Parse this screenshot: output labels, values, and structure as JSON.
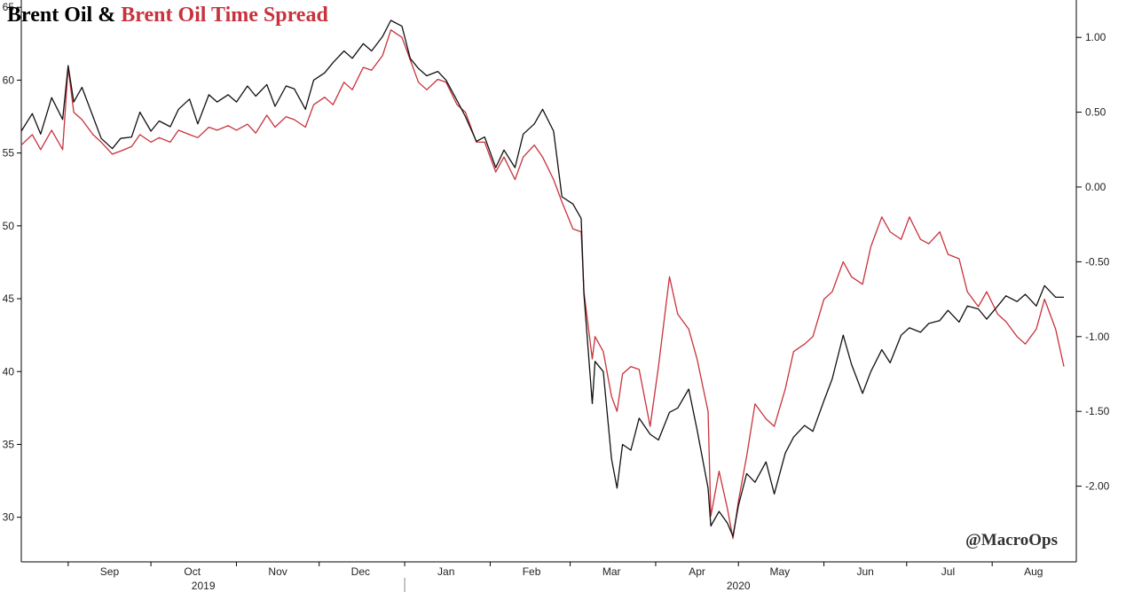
{
  "chart_data": {
    "type": "line",
    "title": "Brent Oil & ",
    "title_highlight": "Brent Oil Time Spread",
    "watermark": "@MacroOps",
    "colors": {
      "brent": "#111111",
      "spread": "#c8323c"
    },
    "x_months": [
      {
        "label": "Sep",
        "date": "2019-09-01"
      },
      {
        "label": "Oct",
        "date": "2019-10-01"
      },
      {
        "label": "Nov",
        "date": "2019-11-01"
      },
      {
        "label": "Dec",
        "date": "2019-12-01"
      },
      {
        "label": "Jan",
        "date": "2020-01-01"
      },
      {
        "label": "Feb",
        "date": "2020-02-01"
      },
      {
        "label": "Mar",
        "date": "2020-03-01"
      },
      {
        "label": "Apr",
        "date": "2020-04-01"
      },
      {
        "label": "May",
        "date": "2020-05-01"
      },
      {
        "label": "Jun",
        "date": "2020-06-01"
      },
      {
        "label": "Jul",
        "date": "2020-07-01"
      },
      {
        "label": "Aug",
        "date": "2020-08-01"
      }
    ],
    "x_years": [
      {
        "label": "2019",
        "date": "2019-10-20"
      },
      {
        "label": "2020",
        "date": "2020-05-01"
      }
    ],
    "x_range": [
      "2019-08-15",
      "2020-08-27"
    ],
    "year_divider": "2020-01-01",
    "left_axis": {
      "ylim": [
        27,
        65.5
      ],
      "ticks": [
        30,
        35,
        40,
        45,
        50,
        55,
        60,
        65
      ],
      "tick_labels": [
        "30",
        "35",
        "40",
        "45",
        "50",
        "55",
        "60",
        "65"
      ]
    },
    "right_axis": {
      "ylim": [
        -2.5,
        1.25
      ],
      "ticks": [
        -2.0,
        -1.5,
        -1.0,
        -0.5,
        0.0,
        0.5,
        1.0
      ],
      "tick_labels": [
        "-2.00",
        "-1.50",
        "-1.00",
        "-0.50",
        "0.00",
        "0.50",
        "1.00"
      ]
    },
    "series": [
      {
        "name": "Brent Oil",
        "axis": "left",
        "points": [
          [
            "2019-08-15",
            56.5
          ],
          [
            "2019-08-19",
            57.7
          ],
          [
            "2019-08-22",
            56.3
          ],
          [
            "2019-08-26",
            58.8
          ],
          [
            "2019-08-30",
            57.3
          ],
          [
            "2019-09-01",
            61.0
          ],
          [
            "2019-09-03",
            58.5
          ],
          [
            "2019-09-06",
            59.5
          ],
          [
            "2019-09-10",
            57.5
          ],
          [
            "2019-09-13",
            56.0
          ],
          [
            "2019-09-17",
            55.3
          ],
          [
            "2019-09-20",
            56.0
          ],
          [
            "2019-09-24",
            56.1
          ],
          [
            "2019-09-27",
            57.8
          ],
          [
            "2019-10-01",
            56.5
          ],
          [
            "2019-10-04",
            57.2
          ],
          [
            "2019-10-08",
            56.8
          ],
          [
            "2019-10-11",
            58.0
          ],
          [
            "2019-10-15",
            58.7
          ],
          [
            "2019-10-18",
            57.0
          ],
          [
            "2019-10-22",
            59.0
          ],
          [
            "2019-10-25",
            58.5
          ],
          [
            "2019-10-29",
            59.0
          ],
          [
            "2019-11-01",
            58.5
          ],
          [
            "2019-11-05",
            59.6
          ],
          [
            "2019-11-08",
            58.9
          ],
          [
            "2019-11-12",
            59.7
          ],
          [
            "2019-11-15",
            58.2
          ],
          [
            "2019-11-19",
            59.6
          ],
          [
            "2019-11-22",
            59.4
          ],
          [
            "2019-11-26",
            58.0
          ],
          [
            "2019-11-29",
            60.0
          ],
          [
            "2019-12-03",
            60.5
          ],
          [
            "2019-12-06",
            61.2
          ],
          [
            "2019-12-10",
            62.0
          ],
          [
            "2019-12-13",
            61.5
          ],
          [
            "2019-12-17",
            62.5
          ],
          [
            "2019-12-20",
            62.0
          ],
          [
            "2019-12-24",
            63.0
          ],
          [
            "2019-12-27",
            64.1
          ],
          [
            "2019-12-31",
            63.7
          ],
          [
            "2020-01-03",
            61.5
          ],
          [
            "2020-01-06",
            60.8
          ],
          [
            "2020-01-09",
            60.3
          ],
          [
            "2020-01-13",
            60.6
          ],
          [
            "2020-01-16",
            60.0
          ],
          [
            "2020-01-20",
            58.6
          ],
          [
            "2020-01-23",
            57.5
          ],
          [
            "2020-01-27",
            55.8
          ],
          [
            "2020-01-30",
            56.1
          ],
          [
            "2020-02-03",
            54.0
          ],
          [
            "2020-02-06",
            55.2
          ],
          [
            "2020-02-10",
            54.0
          ],
          [
            "2020-02-13",
            56.3
          ],
          [
            "2020-02-17",
            57.0
          ],
          [
            "2020-02-20",
            58.0
          ],
          [
            "2020-02-24",
            56.5
          ],
          [
            "2020-02-27",
            52.0
          ],
          [
            "2020-03-02",
            51.5
          ],
          [
            "2020-03-05",
            50.5
          ],
          [
            "2020-03-06",
            45.3
          ],
          [
            "2020-03-09",
            37.8
          ],
          [
            "2020-03-10",
            40.7
          ],
          [
            "2020-03-13",
            40.0
          ],
          [
            "2020-03-16",
            34.0
          ],
          [
            "2020-03-18",
            32.0
          ],
          [
            "2020-03-20",
            35.0
          ],
          [
            "2020-03-23",
            34.6
          ],
          [
            "2020-03-26",
            36.8
          ],
          [
            "2020-03-30",
            35.7
          ],
          [
            "2020-04-02",
            35.3
          ],
          [
            "2020-04-06",
            37.2
          ],
          [
            "2020-04-09",
            37.5
          ],
          [
            "2020-04-13",
            38.8
          ],
          [
            "2020-04-16",
            36.0
          ],
          [
            "2020-04-20",
            32.0
          ],
          [
            "2020-04-21",
            29.4
          ],
          [
            "2020-04-24",
            30.4
          ],
          [
            "2020-04-27",
            29.6
          ],
          [
            "2020-04-29",
            28.7
          ],
          [
            "2020-05-01",
            30.8
          ],
          [
            "2020-05-04",
            33.0
          ],
          [
            "2020-05-07",
            32.4
          ],
          [
            "2020-05-11",
            33.8
          ],
          [
            "2020-05-14",
            31.6
          ],
          [
            "2020-05-18",
            34.4
          ],
          [
            "2020-05-21",
            35.5
          ],
          [
            "2020-05-25",
            36.3
          ],
          [
            "2020-05-28",
            35.9
          ],
          [
            "2020-06-01",
            38.0
          ],
          [
            "2020-06-04",
            39.5
          ],
          [
            "2020-06-08",
            42.5
          ],
          [
            "2020-06-11",
            40.5
          ],
          [
            "2020-06-15",
            38.5
          ],
          [
            "2020-06-18",
            40.0
          ],
          [
            "2020-06-22",
            41.5
          ],
          [
            "2020-06-25",
            40.6
          ],
          [
            "2020-06-29",
            42.5
          ],
          [
            "2020-07-02",
            43.0
          ],
          [
            "2020-07-06",
            42.7
          ],
          [
            "2020-07-09",
            43.3
          ],
          [
            "2020-07-13",
            43.5
          ],
          [
            "2020-07-16",
            44.2
          ],
          [
            "2020-07-20",
            43.4
          ],
          [
            "2020-07-23",
            44.5
          ],
          [
            "2020-07-27",
            44.3
          ],
          [
            "2020-07-30",
            43.6
          ],
          [
            "2020-08-03",
            44.5
          ],
          [
            "2020-08-06",
            45.2
          ],
          [
            "2020-08-10",
            44.8
          ],
          [
            "2020-08-13",
            45.3
          ],
          [
            "2020-08-17",
            44.5
          ],
          [
            "2020-08-20",
            45.9
          ],
          [
            "2020-08-24",
            45.1
          ],
          [
            "2020-08-27",
            45.1
          ]
        ]
      },
      {
        "name": "Brent Oil Time Spread",
        "axis": "right",
        "points": [
          [
            "2019-08-15",
            0.28
          ],
          [
            "2019-08-19",
            0.35
          ],
          [
            "2019-08-22",
            0.25
          ],
          [
            "2019-08-26",
            0.38
          ],
          [
            "2019-08-30",
            0.25
          ],
          [
            "2019-09-01",
            0.8
          ],
          [
            "2019-09-03",
            0.5
          ],
          [
            "2019-09-06",
            0.45
          ],
          [
            "2019-09-10",
            0.35
          ],
          [
            "2019-09-13",
            0.3
          ],
          [
            "2019-09-17",
            0.22
          ],
          [
            "2019-09-20",
            0.24
          ],
          [
            "2019-09-24",
            0.27
          ],
          [
            "2019-09-27",
            0.35
          ],
          [
            "2019-10-01",
            0.3
          ],
          [
            "2019-10-04",
            0.33
          ],
          [
            "2019-10-08",
            0.3
          ],
          [
            "2019-10-11",
            0.38
          ],
          [
            "2019-10-15",
            0.35
          ],
          [
            "2019-10-18",
            0.33
          ],
          [
            "2019-10-22",
            0.4
          ],
          [
            "2019-10-25",
            0.38
          ],
          [
            "2019-10-29",
            0.41
          ],
          [
            "2019-11-01",
            0.38
          ],
          [
            "2019-11-05",
            0.42
          ],
          [
            "2019-11-08",
            0.36
          ],
          [
            "2019-11-12",
            0.48
          ],
          [
            "2019-11-15",
            0.4
          ],
          [
            "2019-11-19",
            0.47
          ],
          [
            "2019-11-22",
            0.45
          ],
          [
            "2019-11-26",
            0.4
          ],
          [
            "2019-11-29",
            0.55
          ],
          [
            "2019-12-03",
            0.6
          ],
          [
            "2019-12-06",
            0.55
          ],
          [
            "2019-12-10",
            0.7
          ],
          [
            "2019-12-13",
            0.65
          ],
          [
            "2019-12-17",
            0.8
          ],
          [
            "2019-12-20",
            0.78
          ],
          [
            "2019-12-24",
            0.88
          ],
          [
            "2019-12-27",
            1.05
          ],
          [
            "2019-12-31",
            1.0
          ],
          [
            "2020-01-03",
            0.85
          ],
          [
            "2020-01-06",
            0.7
          ],
          [
            "2020-01-09",
            0.65
          ],
          [
            "2020-01-13",
            0.72
          ],
          [
            "2020-01-16",
            0.7
          ],
          [
            "2020-01-20",
            0.55
          ],
          [
            "2020-01-23",
            0.5
          ],
          [
            "2020-01-27",
            0.3
          ],
          [
            "2020-01-30",
            0.3
          ],
          [
            "2020-02-03",
            0.1
          ],
          [
            "2020-02-06",
            0.2
          ],
          [
            "2020-02-10",
            0.05
          ],
          [
            "2020-02-13",
            0.2
          ],
          [
            "2020-02-17",
            0.28
          ],
          [
            "2020-02-20",
            0.2
          ],
          [
            "2020-02-24",
            0.05
          ],
          [
            "2020-02-27",
            -0.1
          ],
          [
            "2020-03-02",
            -0.28
          ],
          [
            "2020-03-05",
            -0.3
          ],
          [
            "2020-03-06",
            -0.7
          ],
          [
            "2020-03-09",
            -1.15
          ],
          [
            "2020-03-10",
            -1.0
          ],
          [
            "2020-03-13",
            -1.1
          ],
          [
            "2020-03-16",
            -1.4
          ],
          [
            "2020-03-18",
            -1.5
          ],
          [
            "2020-03-20",
            -1.25
          ],
          [
            "2020-03-23",
            -1.2
          ],
          [
            "2020-03-26",
            -1.22
          ],
          [
            "2020-03-30",
            -1.6
          ],
          [
            "2020-04-02",
            -1.2
          ],
          [
            "2020-04-06",
            -0.6
          ],
          [
            "2020-04-09",
            -0.85
          ],
          [
            "2020-04-13",
            -0.95
          ],
          [
            "2020-04-16",
            -1.15
          ],
          [
            "2020-04-20",
            -1.5
          ],
          [
            "2020-04-21",
            -2.2
          ],
          [
            "2020-04-24",
            -1.9
          ],
          [
            "2020-04-27",
            -2.15
          ],
          [
            "2020-04-29",
            -2.35
          ],
          [
            "2020-05-01",
            -2.1
          ],
          [
            "2020-05-04",
            -1.8
          ],
          [
            "2020-05-07",
            -1.45
          ],
          [
            "2020-05-11",
            -1.55
          ],
          [
            "2020-05-14",
            -1.6
          ],
          [
            "2020-05-18",
            -1.35
          ],
          [
            "2020-05-21",
            -1.1
          ],
          [
            "2020-05-25",
            -1.05
          ],
          [
            "2020-05-28",
            -1.0
          ],
          [
            "2020-06-01",
            -0.75
          ],
          [
            "2020-06-04",
            -0.7
          ],
          [
            "2020-06-08",
            -0.5
          ],
          [
            "2020-06-11",
            -0.6
          ],
          [
            "2020-06-15",
            -0.65
          ],
          [
            "2020-06-18",
            -0.4
          ],
          [
            "2020-06-22",
            -0.2
          ],
          [
            "2020-06-25",
            -0.3
          ],
          [
            "2020-06-29",
            -0.35
          ],
          [
            "2020-07-02",
            -0.2
          ],
          [
            "2020-07-06",
            -0.35
          ],
          [
            "2020-07-09",
            -0.38
          ],
          [
            "2020-07-13",
            -0.3
          ],
          [
            "2020-07-16",
            -0.45
          ],
          [
            "2020-07-20",
            -0.48
          ],
          [
            "2020-07-23",
            -0.7
          ],
          [
            "2020-07-27",
            -0.8
          ],
          [
            "2020-07-30",
            -0.7
          ],
          [
            "2020-08-03",
            -0.85
          ],
          [
            "2020-08-06",
            -0.9
          ],
          [
            "2020-08-10",
            -1.0
          ],
          [
            "2020-08-13",
            -1.05
          ],
          [
            "2020-08-17",
            -0.95
          ],
          [
            "2020-08-20",
            -0.75
          ],
          [
            "2020-08-24",
            -0.95
          ],
          [
            "2020-08-27",
            -1.2
          ]
        ]
      }
    ]
  }
}
